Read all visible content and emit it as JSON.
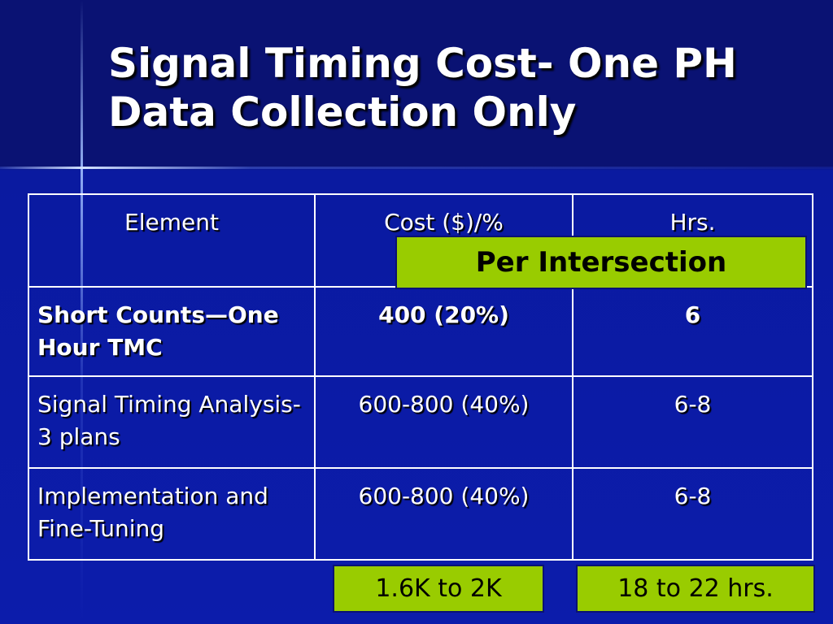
{
  "header": {
    "title": "Signal Timing Cost- One PH Data Collection Only"
  },
  "table": {
    "header": [
      "Element",
      "Cost ($)/%",
      "Hrs."
    ],
    "rows": [
      [
        "Short Counts—One Hour TMC",
        "400 (20%)",
        "6"
      ],
      [
        "Signal Timing Analysis-3 plans",
        "600-800 (40%)",
        "6-8"
      ],
      [
        "Implementation and Fine-Tuning",
        "600-800 (40%)",
        "6-8"
      ]
    ]
  },
  "callouts": {
    "per_intersection": "Per Intersection",
    "total_cost": "1.6K to 2K",
    "total_hours": "18 to 22 hrs."
  }
}
